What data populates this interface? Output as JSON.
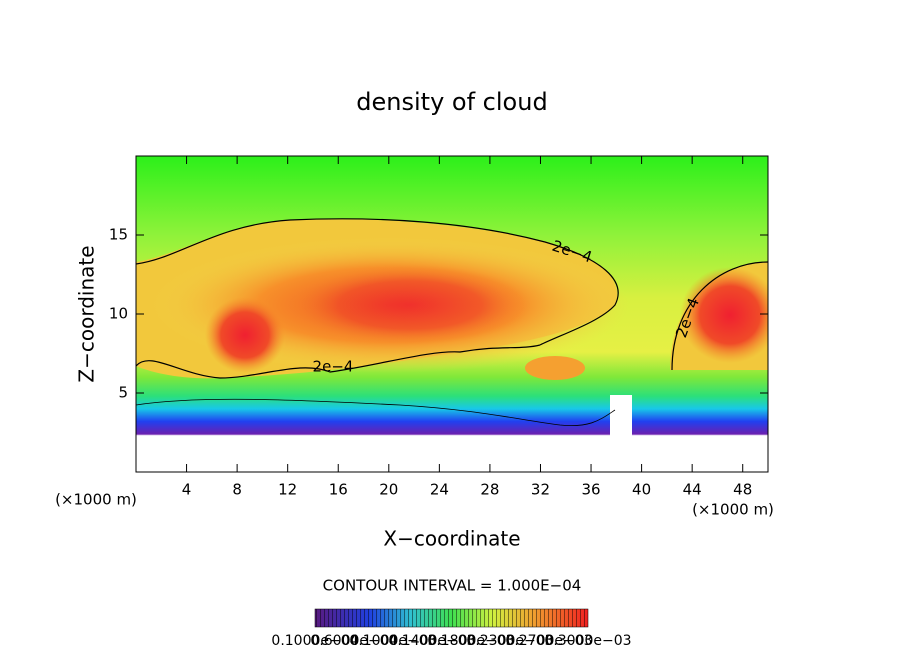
{
  "chart_data": {
    "type": "contour",
    "title": "density of cloud",
    "x_label": "X−coordinate",
    "y_label": "Z−coordinate",
    "x_unit": "(×1000 m)",
    "y_unit": "(×1000 m)",
    "xlim": [
      0,
      50
    ],
    "xticks": [
      4,
      8,
      12,
      16,
      20,
      24,
      28,
      32,
      36,
      40,
      44,
      48
    ],
    "ylim": [
      0,
      20
    ],
    "yticks": [
      5,
      10,
      15
    ],
    "contour_labels": [
      "2e−4",
      "2e−4",
      "2e−4"
    ],
    "contour_interval": "CONTOUR INTERVAL = 1.000E−04",
    "colorbar_labels": [
      "0.1000e−04",
      "0.6000e−04",
      "0.1000e−03",
      "0.1400e−03",
      "0.1800e−03",
      "0.2300e−03",
      "0.2700e−03",
      "0.3000e−03"
    ]
  }
}
